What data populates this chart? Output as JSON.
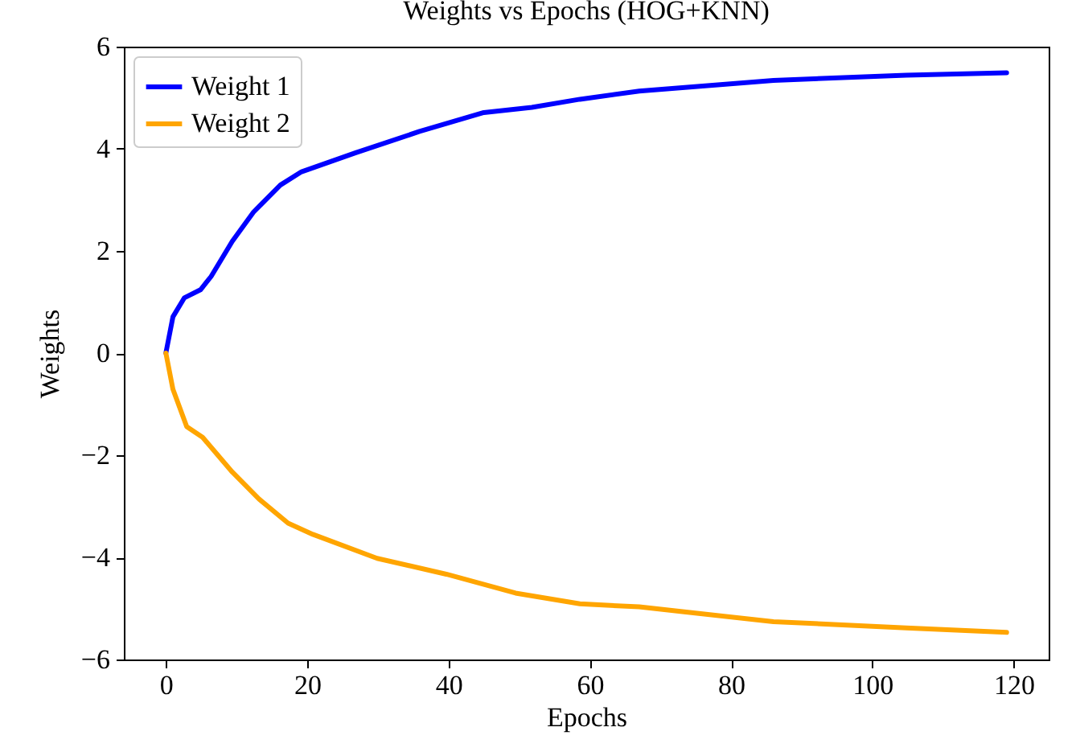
{
  "chart_data": {
    "type": "line",
    "title": "Weights vs Epochs (HOG+KNN)",
    "xlabel": "Epochs",
    "ylabel": "Weights",
    "xlim": [
      -5.95,
      124.95
    ],
    "ylim": [
      -6,
      6
    ],
    "xticks": [
      0,
      20,
      40,
      60,
      80,
      100,
      120
    ],
    "yticks": [
      -6,
      -4,
      -2,
      0,
      2,
      4,
      6
    ],
    "grid": false,
    "legend": "top left",
    "line_style": "solid",
    "marker": "none",
    "series": [
      {
        "name": "Weight 1",
        "color": "#0000ff",
        "x": [
          0,
          1,
          2.6,
          4.9,
          6.4,
          9.4,
          12.4,
          16.2,
          19.2,
          26.8,
          35.9,
          45,
          51.8,
          58.6,
          67,
          86,
          104.8,
          119
        ],
        "values": [
          0,
          0.71,
          1.08,
          1.24,
          1.5,
          2.19,
          2.76,
          3.29,
          3.55,
          3.92,
          4.34,
          4.71,
          4.81,
          4.97,
          5.13,
          5.34,
          5.44,
          5.49
        ]
      },
      {
        "name": "Weight 2",
        "color": "#ffa500",
        "x": [
          0,
          1,
          2.95,
          5.2,
          9.4,
          13.2,
          17.3,
          20.8,
          29.9,
          39.7,
          49.5,
          58.6,
          67,
          86,
          104.8,
          119
        ],
        "values": [
          0,
          -0.71,
          -1.44,
          -1.65,
          -2.33,
          -2.86,
          -3.33,
          -3.55,
          -4.02,
          -4.33,
          -4.7,
          -4.91,
          -4.97,
          -5.26,
          -5.38,
          -5.47
        ]
      }
    ]
  }
}
